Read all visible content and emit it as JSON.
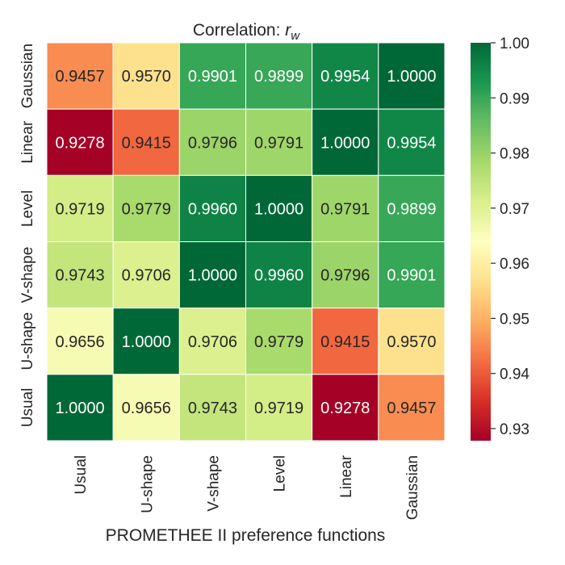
{
  "chart_data": {
    "type": "heatmap",
    "title_prefix": "Correlation: ",
    "title_symbol": "r",
    "title_subscript": "w",
    "xlabel": "PROMETHEE II preference functions",
    "ylabel": "",
    "x_categories": [
      "Usual",
      "U-shape",
      "V-shape",
      "Level",
      "Linear",
      "Gaussian"
    ],
    "y_categories_top_to_bottom": [
      "Gaussian",
      "Linear",
      "Level",
      "V-shape",
      "U-shape",
      "Usual"
    ],
    "values": [
      [
        0.9457,
        0.957,
        0.9901,
        0.9899,
        0.9954,
        1.0
      ],
      [
        0.9278,
        0.9415,
        0.9796,
        0.9791,
        1.0,
        0.9954
      ],
      [
        0.9719,
        0.9779,
        0.996,
        1.0,
        0.9791,
        0.9899
      ],
      [
        0.9743,
        0.9706,
        1.0,
        0.996,
        0.9796,
        0.9901
      ],
      [
        0.9656,
        1.0,
        0.9706,
        0.9779,
        0.9415,
        0.957
      ],
      [
        1.0,
        0.9656,
        0.9743,
        0.9719,
        0.9278,
        0.9457
      ]
    ],
    "value_labels": [
      [
        "0.9457",
        "0.9570",
        "0.9901",
        "0.9899",
        "0.9954",
        "1.0000"
      ],
      [
        "0.9278",
        "0.9415",
        "0.9796",
        "0.9791",
        "1.0000",
        "0.9954"
      ],
      [
        "0.9719",
        "0.9779",
        "0.9960",
        "1.0000",
        "0.9791",
        "0.9899"
      ],
      [
        "0.9743",
        "0.9706",
        "1.0000",
        "0.9960",
        "0.9796",
        "0.9901"
      ],
      [
        "0.9656",
        "1.0000",
        "0.9706",
        "0.9779",
        "0.9415",
        "0.9570"
      ],
      [
        "1.0000",
        "0.9656",
        "0.9743",
        "0.9719",
        "0.9278",
        "0.9457"
      ]
    ],
    "colormap": "RdYlGn",
    "vmin": 0.9278,
    "vmax": 1.0,
    "colorbar_ticks": [
      0.93,
      0.94,
      0.95,
      0.96,
      0.97,
      0.98,
      0.99,
      1.0
    ],
    "colorbar_tick_labels": [
      "0.93",
      "0.94",
      "0.95",
      "0.96",
      "0.97",
      "0.98",
      "0.99",
      "1.00"
    ],
    "grid": false,
    "colorbar_position": "right"
  }
}
